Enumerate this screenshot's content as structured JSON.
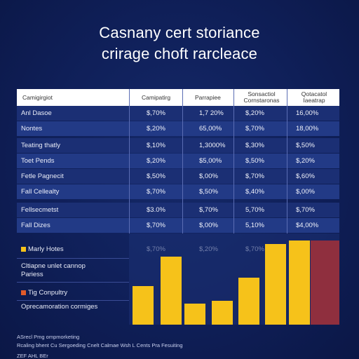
{
  "title_line1": "Casnany cert storiance",
  "title_line2": "crirage choft rarcleace",
  "chart_data": {
    "type": "table",
    "columns": [
      "Camigirgiot",
      "Camipatirg",
      "Parrapiee",
      "Sonsactiol Cornstaronas",
      "Qotacatol Iaeatrap"
    ],
    "rows": [
      {
        "label": "Anl Dasoe",
        "values": [
          "$,70%",
          "1,7 20%",
          "$,20%",
          "16,00%"
        ]
      },
      {
        "label": "Nontes",
        "values": [
          "$,20%",
          "65,00%",
          "$,70%",
          "18,00%"
        ]
      },
      {
        "label": "Teating thatly",
        "values": [
          "$,10%",
          "1,3000%",
          "$,30%",
          "$,50%"
        ]
      },
      {
        "label": "Toet Pends",
        "values": [
          "$,20%",
          "$5,00%",
          "$,50%",
          "$,20%"
        ]
      },
      {
        "label": "Fetle Pagnecit",
        "values": [
          "$,50%",
          "$,00%",
          "$,70%",
          "$,60%"
        ]
      },
      {
        "label": "Fall Cellealty",
        "values": [
          "$,70%",
          "$,50%",
          "$,40%",
          "$,00%"
        ]
      },
      {
        "label": "Fellsecmetst",
        "values": [
          "$3.0%",
          "$,70%",
          "5,70%",
          "$,70%"
        ]
      },
      {
        "label": "Fall Dizes",
        "values": [
          "$,70%",
          "$,00%",
          "5,10%",
          "$4,00%"
        ]
      },
      {
        "label": "Marly Hotes",
        "values": [
          "$,70%",
          "$,20%",
          "$,70%",
          ""
        ]
      }
    ],
    "bars": {
      "values": [
        0.55,
        0.97,
        0.3,
        0.34,
        0.67,
        1.15,
        1.2,
        1.2
      ],
      "colors": [
        "#f6c21a",
        "#f6c21a",
        "#f6c21a",
        "#f6c21a",
        "#f6c21a",
        "#f6c21a",
        "#f6c21a",
        "#8f2f3e"
      ]
    },
    "lower_labels": [
      {
        "text": "Marly Hotes",
        "marker": "#f6c21a"
      },
      {
        "text": "Cltiapne unlet cannop Pariess",
        "marker": ""
      },
      {
        "text": "Tig Conpultry",
        "marker": "#e05a2a"
      },
      {
        "text": "Oprecamoration cormiges",
        "marker": ""
      }
    ]
  },
  "footer_line1": "ASrecl Pmg ompmorketing",
  "footer_line2": "Rcaling bhent Cu Sergoeding Cnelt Calmae Wsh L Cents Pra Fesuiting",
  "footer_line3": "ZEF AHL BEr"
}
